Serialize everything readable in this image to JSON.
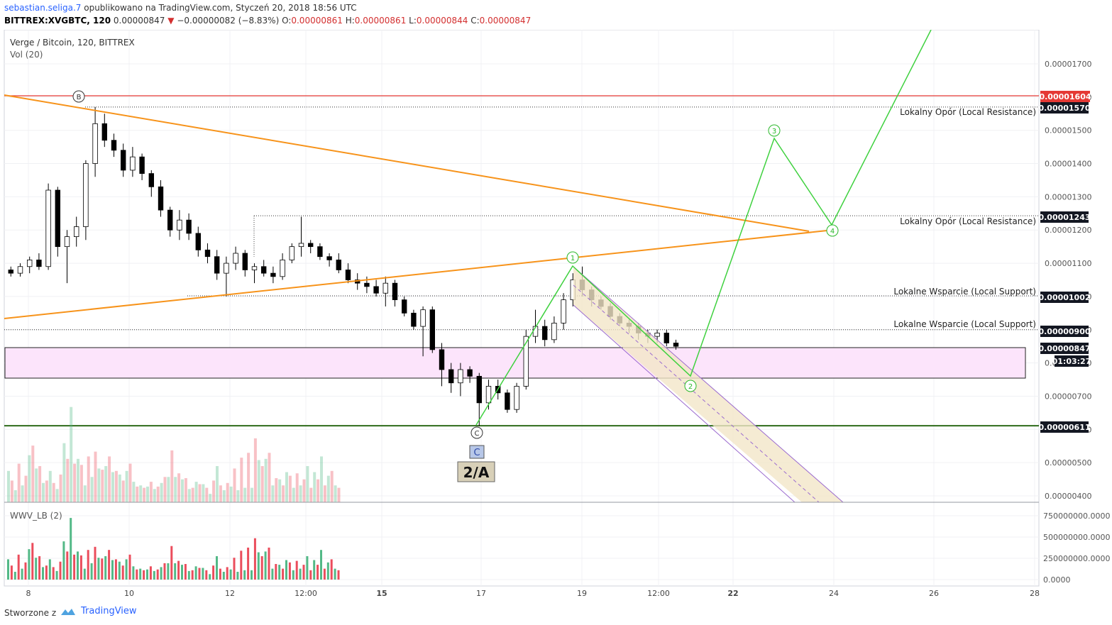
{
  "header": {
    "author": "sebastian.seliga.7",
    "published_text": "opublikowano na TradingView.com, Styczeń 20, 2018 18:56 UTC",
    "symbol": "BITTREX:XVGBTC, 120",
    "last": "0.00000847",
    "change": "−0.00000082 (−8.83%)",
    "o_label": "O:",
    "o": "0.00000861",
    "h_label": "H:",
    "h": "0.00000861",
    "l_label": "L:",
    "l": "0.00000844",
    "c_label": "C:",
    "c": "0.00000847"
  },
  "legend": {
    "title": "Verge / Bitcoin, 120, BITTREX",
    "vol": "Vol (20)",
    "indicator": "WWV_LB (2)"
  },
  "footer": {
    "made_with": "Stworzone z",
    "brand": "TradingView"
  },
  "colors": {
    "up": "#53b987",
    "down": "#eb4d5c",
    "candle_body": "#000000",
    "orange_line": "#f7931a",
    "green_path": "#3fd13f",
    "red_line": "#e53935",
    "purple_channel": "#9c6ccf",
    "channel_fill": "#f3e6c8",
    "zone_fill": "#fce4fb",
    "support_line": "#2e6b1a"
  },
  "chart_data": {
    "type": "candlestick",
    "title": "Verge / Bitcoin, 120, BITTREX",
    "price_axis": {
      "ylim": [
        3.8e-06,
        1.81e-05
      ],
      "ticks": [
        "0.00001700",
        "0.00001600",
        "0.00001500",
        "0.00001400",
        "0.00001300",
        "0.00001200",
        "0.00001100",
        "0.00001000",
        "0.00000900",
        "0.00000800",
        "0.00000700",
        "0.00000600",
        "0.00000500",
        "0.00000400"
      ]
    },
    "time_axis": {
      "labels": [
        "8",
        "10",
        "12",
        "12:00",
        "15",
        "17",
        "19",
        "12:00",
        "22",
        "24",
        "26",
        "28"
      ],
      "bold": [
        "15",
        "22"
      ]
    },
    "price_labels": [
      {
        "value": "0.00001604",
        "style": "red"
      },
      {
        "value": "0.00001570",
        "style": "dark"
      },
      {
        "value": "0.00001243",
        "style": "dark"
      },
      {
        "value": "0.00001002",
        "style": "dark"
      },
      {
        "value": "0.00000900",
        "style": "dark"
      },
      {
        "value": "0.00000847",
        "style": "dark"
      },
      {
        "value": "01:03:27",
        "style": "dark"
      },
      {
        "value": "0.00000611",
        "style": "dark"
      }
    ],
    "levels": {
      "red": 1.604e-05,
      "resistance_1": 1.57e-05,
      "resistance_2": 1.243e-05,
      "support_1": 1.002e-05,
      "support_2": 9e-06,
      "bottom": 6.11e-06
    },
    "annotations": [
      {
        "text": "Lokalny Opór (Local Resistance)"
      },
      {
        "text": "Lokalny Opór (Local Resistance)"
      },
      {
        "text": "Lokalne Wsparcie (Local Support)"
      },
      {
        "text": "Lokalne Wsparcie (Local Support)"
      }
    ],
    "wave_labels": [
      "B",
      "C",
      "1",
      "2",
      "3",
      "4"
    ],
    "callouts": [
      "C",
      "2/A"
    ],
    "candles": [
      [
        1.08e-05,
        1.09e-05,
        1.06e-05,
        1.07e-05
      ],
      [
        1.07e-05,
        1.1e-05,
        1.06e-05,
        1.09e-05
      ],
      [
        1.09e-05,
        1.12e-05,
        1.07e-05,
        1.11e-05
      ],
      [
        1.11e-05,
        1.13e-05,
        1.08e-05,
        1.09e-05
      ],
      [
        1.09e-05,
        1.34e-05,
        1.08e-05,
        1.32e-05
      ],
      [
        1.32e-05,
        1.33e-05,
        1.12e-05,
        1.15e-05
      ],
      [
        1.15e-05,
        1.2e-05,
        1.04e-05,
        1.18e-05
      ],
      [
        1.18e-05,
        1.24e-05,
        1.15e-05,
        1.21e-05
      ],
      [
        1.21e-05,
        1.41e-05,
        1.17e-05,
        1.4e-05
      ],
      [
        1.4e-05,
        1.57e-05,
        1.36e-05,
        1.52e-05
      ],
      [
        1.52e-05,
        1.55e-05,
        1.45e-05,
        1.47e-05
      ],
      [
        1.47e-05,
        1.49e-05,
        1.42e-05,
        1.44e-05
      ],
      [
        1.44e-05,
        1.46e-05,
        1.36e-05,
        1.38e-05
      ],
      [
        1.38e-05,
        1.45e-05,
        1.36e-05,
        1.42e-05
      ],
      [
        1.42e-05,
        1.43e-05,
        1.35e-05,
        1.37e-05
      ],
      [
        1.37e-05,
        1.38e-05,
        1.3e-05,
        1.33e-05
      ],
      [
        1.33e-05,
        1.35e-05,
        1.24e-05,
        1.26e-05
      ],
      [
        1.26e-05,
        1.27e-05,
        1.18e-05,
        1.2e-05
      ],
      [
        1.2e-05,
        1.26e-05,
        1.17e-05,
        1.23e-05
      ],
      [
        1.23e-05,
        1.25e-05,
        1.17e-05,
        1.19e-05
      ],
      [
        1.19e-05,
        1.21e-05,
        1.12e-05,
        1.14e-05
      ],
      [
        1.14e-05,
        1.16e-05,
        1.1e-05,
        1.12e-05
      ],
      [
        1.12e-05,
        1.14e-05,
        1.05e-05,
        1.07e-05
      ],
      [
        1.07e-05,
        1.12e-05,
        1e-05,
        1.1e-05
      ],
      [
        1.1e-05,
        1.15e-05,
        1.08e-05,
        1.13e-05
      ],
      [
        1.13e-05,
        1.14e-05,
        1.06e-05,
        1.08e-05
      ],
      [
        1.08e-05,
        1.1e-05,
        1.04e-05,
        1.09e-05
      ],
      [
        1.09e-05,
        1.11e-05,
        1.06e-05,
        1.07e-05
      ],
      [
        1.07e-05,
        1.09e-05,
        1.04e-05,
        1.06e-05
      ],
      [
        1.06e-05,
        1.13e-05,
        1.05e-05,
        1.11e-05
      ],
      [
        1.11e-05,
        1.16e-05,
        1.1e-05,
        1.15e-05
      ],
      [
        1.15e-05,
        1.24e-05,
        1.12e-05,
        1.16e-05
      ],
      [
        1.16e-05,
        1.17e-05,
        1.13e-05,
        1.15e-05
      ],
      [
        1.15e-05,
        1.16e-05,
        1.11e-05,
        1.12e-05
      ],
      [
        1.12e-05,
        1.13e-05,
        1.09e-05,
        1.11e-05
      ],
      [
        1.11e-05,
        1.13e-05,
        1.07e-05,
        1.08e-05
      ],
      [
        1.08e-05,
        1.1e-05,
        1.04e-05,
        1.05e-05
      ],
      [
        1.05e-05,
        1.07e-05,
        1.02e-05,
        1.04e-05
      ],
      [
        1.04e-05,
        1.06e-05,
        1.01e-05,
        1.03e-05
      ],
      [
        1.03e-05,
        1.05e-05,
        1e-05,
        1.01e-05
      ],
      [
        1.01e-05,
        1.06e-05,
        9.7e-06,
        1.04e-05
      ],
      [
        1.04e-05,
        1.05e-05,
        9.7e-06,
        9.9e-06
      ],
      [
        9.9e-06,
        1e-05,
        9.4e-06,
        9.5e-06
      ],
      [
        9.5e-06,
        9.6e-06,
        9e-06,
        9.1e-06
      ],
      [
        9.1e-06,
        9.7e-06,
        8.2e-06,
        9.6e-06
      ],
      [
        9.6e-06,
        9.7e-06,
        8.3e-06,
        8.4e-06
      ],
      [
        8.4e-06,
        8.6e-06,
        7.3e-06,
        7.8e-06
      ],
      [
        7.8e-06,
        8e-06,
        7.1e-06,
        7.4e-06
      ],
      [
        7.4e-06,
        8e-06,
        7e-06,
        7.8e-06
      ],
      [
        7.8e-06,
        7.9e-06,
        7.4e-06,
        7.6e-06
      ],
      [
        7.6e-06,
        7.7e-06,
        6.1e-06,
        6.8e-06
      ],
      [
        6.8e-06,
        7.5e-06,
        6.6e-06,
        7.3e-06
      ],
      [
        7.3e-06,
        7.5e-06,
        6.9e-06,
        7.1e-06
      ],
      [
        7.1e-06,
        7.2e-06,
        6.5e-06,
        6.6e-06
      ],
      [
        6.6e-06,
        7.4e-06,
        6.5e-06,
        7.3e-06
      ],
      [
        7.3e-06,
        9e-06,
        7.2e-06,
        8.8e-06
      ],
      [
        8.8e-06,
        9.6e-06,
        8.6e-06,
        9.1e-06
      ],
      [
        9.1e-06,
        9.3e-06,
        8.5e-06,
        8.7e-06
      ],
      [
        8.7e-06,
        9.4e-06,
        8.6e-06,
        9.2e-06
      ],
      [
        9.2e-06,
        1.01e-05,
        9e-06,
        9.9e-06
      ],
      [
        9.9e-06,
        1.07e-05,
        9.7e-06,
        1.05e-05
      ],
      [
        1.05e-05,
        1.09e-05,
        1e-05,
        1.02e-05
      ],
      [
        1.02e-05,
        1.03e-05,
        9.7e-06,
        9.9e-06
      ],
      [
        9.9e-06,
        1e-05,
        9.6e-06,
        9.7e-06
      ],
      [
        9.7e-06,
        9.8e-06,
        9.3e-06,
        9.4e-06
      ],
      [
        9.4e-06,
        9.5e-06,
        9.1e-06,
        9.2e-06
      ],
      [
        9.2e-06,
        9.3e-06,
        8.9e-06,
        9.1e-06
      ],
      [
        9.1e-06,
        9.2e-06,
        8.7e-06,
        8.9e-06
      ],
      [
        8.9e-06,
        9e-06,
        8.6e-06,
        8.8e-06
      ],
      [
        8.8e-06,
        9e-06,
        8.6e-06,
        8.9e-06
      ],
      [
        8.9e-06,
        9e-06,
        8.5e-06,
        8.6e-06
      ],
      [
        8.6e-06,
        8.7e-06,
        8.4e-06,
        8.5e-06
      ]
    ],
    "volume": {
      "up": [
        0.26,
        0.1,
        0.14,
        0.39,
        0.28,
        0.16,
        0.26,
        0.11,
        0.49,
        0.79,
        0.36,
        0.14,
        0.21,
        0.28,
        0.3,
        0.25,
        0.23,
        0.26,
        0.17,
        0.14,
        0.13,
        0.11,
        0.16,
        0.21,
        0.21,
        0.19,
        0.11,
        0.17,
        0.15,
        0.07,
        0.3,
        0.1,
        0.13,
        0.1,
        0.12,
        0.12,
        0.35,
        0.36,
        0.14,
        0.19,
        0.25,
        0.12,
        0.14,
        0.3,
        0.25,
        0.38,
        0.22,
        0.14
      ],
      "down": [
        0.18,
        0.32,
        0.22,
        0.47,
        0.3,
        0.18,
        0.16,
        0.23,
        0.36,
        0.32,
        0.31,
        0.38,
        0.42,
        0.27,
        0.38,
        0.26,
        0.18,
        0.32,
        0.13,
        0.12,
        0.17,
        0.13,
        0.21,
        0.43,
        0.24,
        0.2,
        0.12,
        0.15,
        0.12,
        0.18,
        0.14,
        0.16,
        0.28,
        0.37,
        0.41,
        0.53,
        0.3,
        0.41,
        0.2,
        0.14,
        0.22,
        0.24,
        0.19,
        0.12,
        0.19,
        0.14,
        0.26,
        0.12
      ]
    },
    "wwv_axis": {
      "ticks": [
        "750000000.0000",
        "500000000.0000",
        "250000000.0000",
        "0.0000"
      ]
    }
  }
}
